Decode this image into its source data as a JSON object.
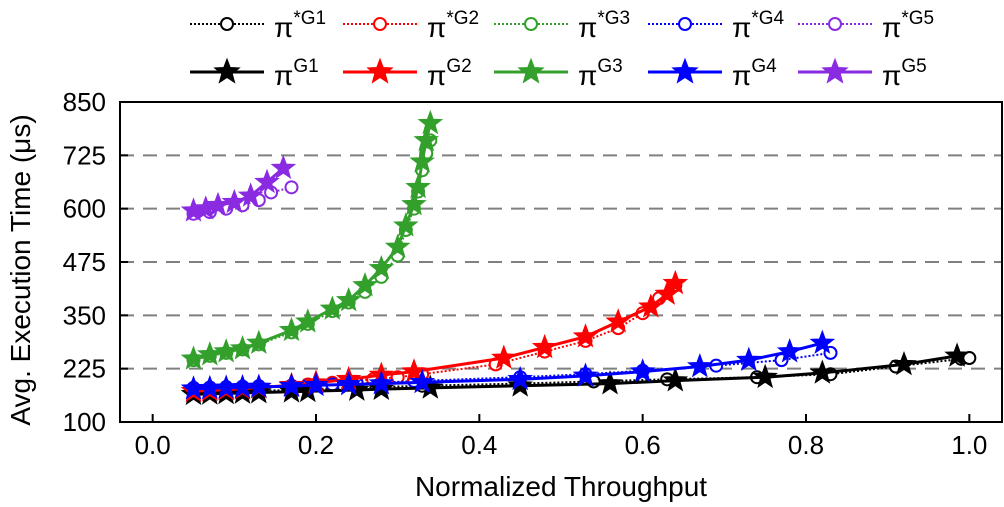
{
  "chart_data": {
    "type": "line",
    "xlabel": "Normalized Throughput",
    "ylabel": "Avg. Execution Time (μs)",
    "xlim": [
      -0.04,
      1.04
    ],
    "ylim": [
      100,
      850
    ],
    "xticks": [
      "0.0",
      "0.2",
      "0.4",
      "0.6",
      "0.8",
      "1.0"
    ],
    "xtick_values": [
      0,
      0.2,
      0.4,
      0.6,
      0.8,
      1.0
    ],
    "yticks": [
      "100",
      "225",
      "350",
      "475",
      "600",
      "725",
      "850"
    ],
    "ytick_values": [
      100,
      225,
      350,
      475,
      600,
      725,
      850
    ],
    "grid": "horizontal dashed",
    "legend_position": "top",
    "series": [
      {
        "name": "π*G1",
        "base": "π",
        "sup": "*G1",
        "marker": "circle",
        "line": "dotted",
        "color": "#000000",
        "x": [
          0.05,
          0.07,
          0.09,
          0.11,
          0.13,
          0.17,
          0.19,
          0.25,
          0.28,
          0.33,
          0.45,
          0.54,
          0.63,
          0.74,
          0.83,
          0.91,
          0.99,
          1.0
        ],
        "y": [
          170,
          170,
          171,
          172,
          173,
          175,
          177,
          180,
          182,
          185,
          190,
          195,
          200,
          205,
          212,
          230,
          248,
          250
        ]
      },
      {
        "name": "π*G2",
        "base": "π",
        "sup": "*G2",
        "marker": "circle",
        "line": "dotted",
        "color": "#ff0000",
        "x": [
          0.05,
          0.07,
          0.09,
          0.11,
          0.13,
          0.17,
          0.19,
          0.22,
          0.24,
          0.27,
          0.3,
          0.33,
          0.42,
          0.48,
          0.53,
          0.57,
          0.6,
          0.62,
          0.64
        ],
        "y": [
          175,
          177,
          178,
          180,
          182,
          185,
          188,
          192,
          196,
          200,
          205,
          212,
          235,
          265,
          290,
          320,
          355,
          390,
          420
        ]
      },
      {
        "name": "π*G3",
        "base": "π",
        "sup": "*G3",
        "marker": "circle",
        "line": "dotted",
        "color": "#33a02c",
        "x": [
          0.05,
          0.07,
          0.09,
          0.11,
          0.13,
          0.17,
          0.19,
          0.22,
          0.24,
          0.26,
          0.28,
          0.3,
          0.31,
          0.32,
          0.325,
          0.33,
          0.335,
          0.34
        ],
        "y": [
          245,
          255,
          262,
          270,
          282,
          310,
          330,
          360,
          380,
          405,
          440,
          490,
          550,
          600,
          640,
          690,
          730,
          760
        ]
      },
      {
        "name": "π*G4",
        "base": "π",
        "sup": "*G4",
        "marker": "circle",
        "line": "dotted",
        "color": "#0000ff",
        "x": [
          0.05,
          0.07,
          0.09,
          0.11,
          0.13,
          0.17,
          0.19,
          0.22,
          0.25,
          0.28,
          0.32,
          0.45,
          0.53,
          0.6,
          0.69,
          0.77,
          0.83
        ],
        "y": [
          180,
          181,
          182,
          183,
          184,
          185,
          186,
          188,
          190,
          192,
          196,
          205,
          212,
          220,
          232,
          245,
          262
        ]
      },
      {
        "name": "π*G5",
        "base": "π",
        "sup": "*G5",
        "marker": "circle",
        "line": "dotted",
        "color": "#8a2be2",
        "x": [
          0.05,
          0.07,
          0.09,
          0.11,
          0.13,
          0.145,
          0.17
        ],
        "y": [
          588,
          592,
          600,
          608,
          620,
          638,
          650
        ]
      },
      {
        "name": "πG1",
        "base": "π",
        "sup": "G1",
        "marker": "star",
        "line": "solid",
        "color": "#000000",
        "x": [
          0.05,
          0.07,
          0.09,
          0.11,
          0.13,
          0.17,
          0.19,
          0.25,
          0.28,
          0.34,
          0.45,
          0.56,
          0.64,
          0.75,
          0.82,
          0.92,
          0.985
        ],
        "y": [
          165,
          166,
          167,
          168,
          169,
          171,
          172,
          175,
          177,
          180,
          185,
          190,
          197,
          205,
          215,
          235,
          255
        ]
      },
      {
        "name": "πG2",
        "base": "π",
        "sup": "G2",
        "marker": "star",
        "line": "solid",
        "color": "#ff0000",
        "x": [
          0.05,
          0.07,
          0.09,
          0.11,
          0.13,
          0.17,
          0.2,
          0.24,
          0.28,
          0.32,
          0.43,
          0.48,
          0.53,
          0.57,
          0.61,
          0.63,
          0.64
        ],
        "y": [
          172,
          174,
          176,
          178,
          181,
          186,
          192,
          200,
          210,
          218,
          250,
          275,
          300,
          335,
          370,
          400,
          425
        ]
      },
      {
        "name": "πG3",
        "base": "π",
        "sup": "G3",
        "marker": "star",
        "line": "solid",
        "color": "#33a02c",
        "x": [
          0.05,
          0.07,
          0.09,
          0.11,
          0.13,
          0.17,
          0.19,
          0.22,
          0.24,
          0.26,
          0.28,
          0.3,
          0.31,
          0.32,
          0.325,
          0.33,
          0.335,
          0.34
        ],
        "y": [
          248,
          258,
          265,
          272,
          285,
          315,
          335,
          365,
          385,
          420,
          460,
          510,
          560,
          610,
          650,
          710,
          760,
          800
        ]
      },
      {
        "name": "πG4",
        "base": "π",
        "sup": "G4",
        "marker": "star",
        "line": "solid",
        "color": "#0000ff",
        "x": [
          0.05,
          0.07,
          0.09,
          0.11,
          0.13,
          0.17,
          0.2,
          0.24,
          0.28,
          0.33,
          0.45,
          0.53,
          0.6,
          0.67,
          0.73,
          0.78,
          0.82
        ],
        "y": [
          178,
          179,
          180,
          181,
          182,
          184,
          186,
          188,
          190,
          193,
          200,
          208,
          218,
          230,
          245,
          265,
          285
        ]
      },
      {
        "name": "πG5",
        "base": "π",
        "sup": "G5",
        "marker": "star",
        "line": "solid",
        "color": "#8a2be2",
        "x": [
          0.05,
          0.065,
          0.08,
          0.1,
          0.12,
          0.14,
          0.16
        ],
        "y": [
          595,
          600,
          608,
          615,
          630,
          662,
          695
        ]
      }
    ]
  }
}
